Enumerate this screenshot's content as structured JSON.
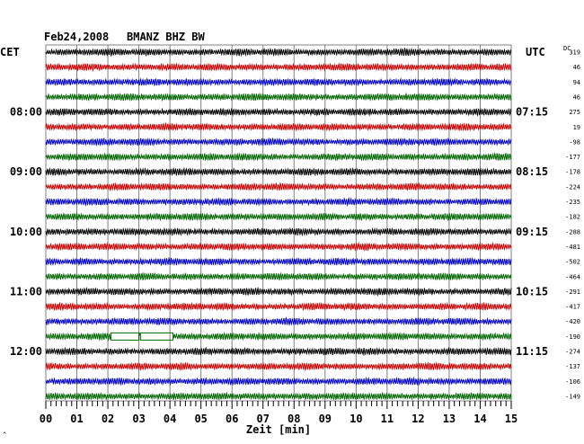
{
  "header": {
    "date": "Feb24,2008",
    "station": "BMANZ BHZ BW",
    "left_tz": "CET",
    "right_tz": "UTC",
    "dc_title": "DC",
    "corner_mark": "^"
  },
  "chart_data": {
    "type": "line",
    "title": "Feb24,2008   BMANZ BHZ BW",
    "xlabel": "Zeit [min]",
    "xlim": [
      0,
      15
    ],
    "x_ticks": [
      "00",
      "01",
      "02",
      "03",
      "04",
      "05",
      "06",
      "07",
      "08",
      "09",
      "10",
      "11",
      "12",
      "13",
      "14",
      "15"
    ],
    "grid": true,
    "trace_colors": [
      "#000000",
      "#cc0000",
      "#0000cc",
      "#006600"
    ],
    "left_time_labels": [
      {
        "row": 4,
        "label": "08:00"
      },
      {
        "row": 8,
        "label": "09:00"
      },
      {
        "row": 12,
        "label": "10:00"
      },
      {
        "row": 16,
        "label": "11:00"
      },
      {
        "row": 20,
        "label": "12:00"
      }
    ],
    "right_time_labels": [
      {
        "row": 4,
        "label": "07:15"
      },
      {
        "row": 8,
        "label": "08:15"
      },
      {
        "row": 12,
        "label": "09:15"
      },
      {
        "row": 16,
        "label": "10:15"
      },
      {
        "row": 20,
        "label": "11:15"
      }
    ],
    "dc_offsets": [
      "319",
      "46",
      "94",
      "46",
      "275",
      "19",
      "-98",
      "-177",
      "-178",
      "-224",
      "-235",
      "-182",
      "-288",
      "-481",
      "-502",
      "-464",
      "-291",
      "-417",
      "-420",
      "-190",
      "-274",
      "-137",
      "-106",
      "-149"
    ],
    "gaps": [
      {
        "row": 19,
        "start_min": 2.1,
        "end_min": 3.0
      },
      {
        "row": 19,
        "start_min": 3.05,
        "end_min": 4.1
      }
    ]
  }
}
